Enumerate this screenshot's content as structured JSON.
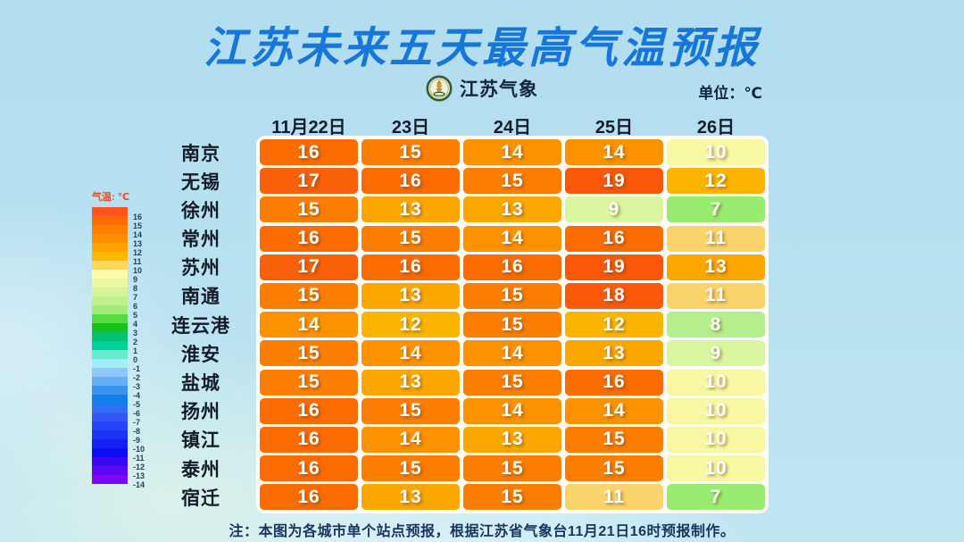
{
  "title": "江苏未来五天最高气温预报",
  "brand": {
    "name": "江苏气象",
    "logo_icon": "pagoda-emblem"
  },
  "unit_label": "单位：℃",
  "legend": {
    "title": "气温: ℃",
    "bands": [
      {
        "label": "16",
        "color": "#fd5420"
      },
      {
        "label": "15",
        "color": "#fc6c00"
      },
      {
        "label": "14",
        "color": "#fd7e00"
      },
      {
        "label": "13",
        "color": "#fe9000"
      },
      {
        "label": "12",
        "color": "#ffa300"
      },
      {
        "label": "11",
        "color": "#fdb900"
      },
      {
        "label": "10",
        "color": "#ffd75e"
      },
      {
        "label": "9",
        "color": "#fdfaaa"
      },
      {
        "label": "8",
        "color": "#ecf8a2"
      },
      {
        "label": "7",
        "color": "#d8f49b"
      },
      {
        "label": "6",
        "color": "#bef08c"
      },
      {
        "label": "5",
        "color": "#a2ec79"
      },
      {
        "label": "4",
        "color": "#55dc3e"
      },
      {
        "label": "3",
        "color": "#16c31d"
      },
      {
        "label": "2",
        "color": "#00c473"
      },
      {
        "label": "1",
        "color": "#00d29b"
      },
      {
        "label": "0",
        "color": "#63eccd"
      },
      {
        "label": "-1",
        "color": "#a5ecf6"
      },
      {
        "label": "-2",
        "color": "#8ec8f8"
      },
      {
        "label": "-3",
        "color": "#64aef6"
      },
      {
        "label": "-4",
        "color": "#3b93f0"
      },
      {
        "label": "-5",
        "color": "#0f80e8"
      },
      {
        "label": "-6",
        "color": "#2e70f2"
      },
      {
        "label": "-7",
        "color": "#3557f6"
      },
      {
        "label": "-8",
        "color": "#2745f4"
      },
      {
        "label": "-9",
        "color": "#1b33f2"
      },
      {
        "label": "-10",
        "color": "#151ff0"
      },
      {
        "label": "-11",
        "color": "#0d0cf2"
      },
      {
        "label": "-12",
        "color": "#3a08f0"
      },
      {
        "label": "-13",
        "color": "#5c06f2"
      },
      {
        "label": "-14",
        "color": "#7e05f6"
      }
    ]
  },
  "table": {
    "date_headers": [
      "11月22日",
      "23日",
      "24日",
      "25日",
      "26日"
    ],
    "rows": [
      {
        "city": "南京",
        "temps": [
          16,
          15,
          14,
          14,
          10
        ]
      },
      {
        "city": "无锡",
        "temps": [
          17,
          16,
          15,
          19,
          12
        ]
      },
      {
        "city": "徐州",
        "temps": [
          15,
          13,
          13,
          9,
          7
        ]
      },
      {
        "city": "常州",
        "temps": [
          16,
          15,
          14,
          16,
          11
        ]
      },
      {
        "city": "苏州",
        "temps": [
          17,
          16,
          16,
          19,
          13
        ]
      },
      {
        "city": "南通",
        "temps": [
          15,
          13,
          15,
          18,
          11
        ]
      },
      {
        "city": "连云港",
        "temps": [
          14,
          12,
          15,
          12,
          8
        ]
      },
      {
        "city": "淮安",
        "temps": [
          15,
          14,
          14,
          13,
          9
        ]
      },
      {
        "city": "盐城",
        "temps": [
          15,
          13,
          15,
          16,
          10
        ]
      },
      {
        "city": "扬州",
        "temps": [
          16,
          15,
          14,
          14,
          10
        ]
      },
      {
        "city": "镇江",
        "temps": [
          16,
          14,
          13,
          15,
          10
        ]
      },
      {
        "city": "泰州",
        "temps": [
          16,
          15,
          15,
          15,
          10
        ]
      },
      {
        "city": "宿迁",
        "temps": [
          16,
          13,
          15,
          11,
          7
        ]
      }
    ]
  },
  "temp_colors": {
    "19": "#fa5708",
    "18": "#fa5a0a",
    "17": "#fa5f0a",
    "16": "#fa6b00",
    "15": "#fc7e00",
    "14": "#fd9200",
    "13": "#fba700",
    "12": "#fbb400",
    "11": "#fad36a",
    "10": "#f8f8a2",
    "9": "#d9f59e",
    "8": "#b5ef8c",
    "7": "#98ec6f"
  },
  "note": "注：本图为各城市单个站点预报，根据江苏省气象台11月21日16时预报制作。",
  "chart_data": {
    "type": "heatmap",
    "title": "江苏未来五天最高气温预报",
    "unit": "℃",
    "categories": [
      "11月22日",
      "23日",
      "24日",
      "25日",
      "26日"
    ],
    "series": [
      {
        "name": "南京",
        "values": [
          16,
          15,
          14,
          14,
          10
        ]
      },
      {
        "name": "无锡",
        "values": [
          17,
          16,
          15,
          19,
          12
        ]
      },
      {
        "name": "徐州",
        "values": [
          15,
          13,
          13,
          9,
          7
        ]
      },
      {
        "name": "常州",
        "values": [
          16,
          15,
          14,
          16,
          11
        ]
      },
      {
        "name": "苏州",
        "values": [
          17,
          16,
          16,
          19,
          13
        ]
      },
      {
        "name": "南通",
        "values": [
          15,
          13,
          15,
          18,
          11
        ]
      },
      {
        "name": "连云港",
        "values": [
          14,
          12,
          15,
          12,
          8
        ]
      },
      {
        "name": "淮安",
        "values": [
          15,
          14,
          14,
          13,
          9
        ]
      },
      {
        "name": "盐城",
        "values": [
          15,
          13,
          15,
          16,
          10
        ]
      },
      {
        "name": "扬州",
        "values": [
          16,
          15,
          14,
          14,
          10
        ]
      },
      {
        "name": "镇江",
        "values": [
          16,
          14,
          13,
          15,
          10
        ]
      },
      {
        "name": "泰州",
        "values": [
          16,
          15,
          15,
          15,
          10
        ]
      },
      {
        "name": "宿迁",
        "values": [
          16,
          13,
          15,
          11,
          7
        ]
      }
    ],
    "legend_title": "气温: ℃",
    "legend_range": [
      -14,
      16
    ],
    "legend_position": "left"
  }
}
